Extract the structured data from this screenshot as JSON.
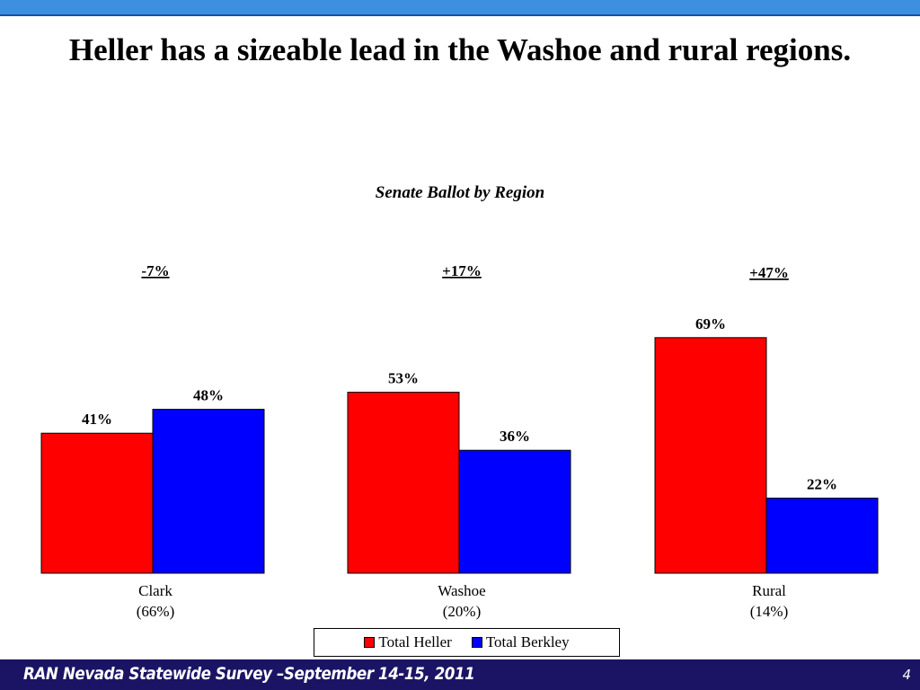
{
  "slide": {
    "title": "Heller has a sizeable lead in the Washoe and rural regions.",
    "footer": "RAN Nevada Statewide Survey –September 14-15, 2011",
    "page_number": "4"
  },
  "colors": {
    "heller": "#ff0000",
    "berkley": "#0000ff"
  },
  "chart_data": {
    "type": "bar",
    "title": "Senate Ballot by Region",
    "categories": [
      "Clark",
      "Washoe",
      "Rural"
    ],
    "category_sublabels": [
      "(66%)",
      "(20%)",
      "(14%)"
    ],
    "series": [
      {
        "name": "Total Heller",
        "values": [
          41,
          53,
          69
        ],
        "labels": [
          "41%",
          "53%",
          "69%"
        ]
      },
      {
        "name": "Total Berkley",
        "values": [
          48,
          36,
          22
        ],
        "labels": [
          "48%",
          "36%",
          "22%"
        ]
      }
    ],
    "differences": [
      "-7%",
      "+17%",
      "+47%"
    ],
    "ylim": [
      0,
      100
    ],
    "legend": "bottom",
    "grid": false
  }
}
